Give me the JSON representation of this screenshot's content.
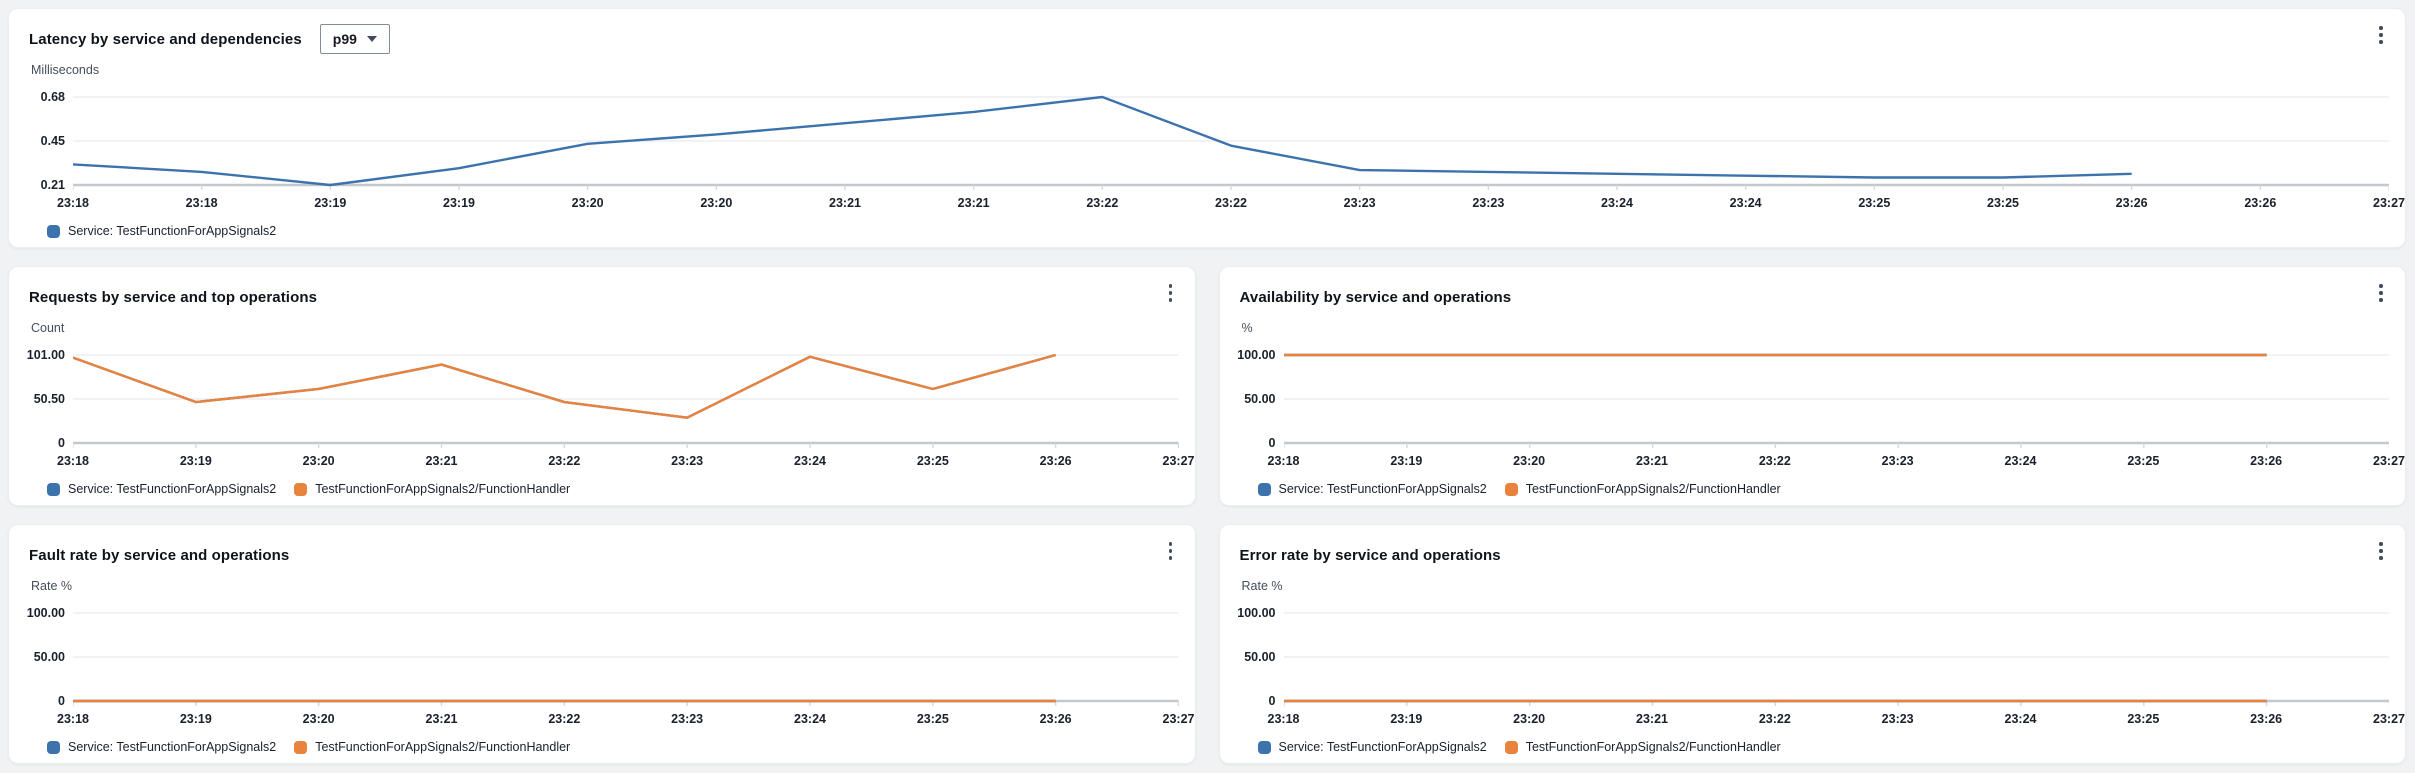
{
  "colors": {
    "blue": "#3C73AD",
    "orange": "#E8823D",
    "grid": "#ebedef",
    "axis": "#c2c8cd",
    "tickmark": "#d4d9dd"
  },
  "chart_data": [
    {
      "id": "latency",
      "type": "line",
      "title": "Latency by service and dependencies",
      "dropdown": {
        "value": "p99"
      },
      "ylabel": "Milliseconds",
      "ylim": [
        0.21,
        0.68
      ],
      "grid": true,
      "legend_position": "bottom",
      "y_ticks": [
        {
          "label": "0.68",
          "value": 0.68
        },
        {
          "label": "0.45",
          "value": 0.45
        },
        {
          "label": "0.21",
          "value": 0.21
        }
      ],
      "x_ticks": [
        "23:18",
        "23:18",
        "23:19",
        "23:19",
        "23:20",
        "23:20",
        "23:21",
        "23:21",
        "23:22",
        "23:22",
        "23:23",
        "23:23",
        "23:24",
        "23:24",
        "23:25",
        "23:25",
        "23:26",
        "23:26",
        "23:27"
      ],
      "series": [
        {
          "name": "Service: TestFunctionForAppSignals2",
          "color": "blue",
          "values": [
            0.32,
            0.28,
            0.21,
            0.3,
            0.43,
            0.48,
            0.54,
            0.6,
            0.68,
            0.42,
            0.29,
            0.28,
            0.27,
            0.26,
            0.25,
            0.25,
            0.27
          ]
        }
      ],
      "legend": [
        {
          "label": "Service: TestFunctionForAppSignals2",
          "color": "blue"
        }
      ]
    },
    {
      "id": "requests",
      "type": "line",
      "title": "Requests by service and top operations",
      "ylabel": "Count",
      "ylim": [
        0,
        101
      ],
      "grid": true,
      "legend_position": "bottom",
      "y_ticks": [
        {
          "label": "101.00",
          "value": 101
        },
        {
          "label": "50.50",
          "value": 50.5
        },
        {
          "label": "0",
          "value": 0
        }
      ],
      "x_ticks": [
        "23:18",
        "23:19",
        "23:20",
        "23:21",
        "23:22",
        "23:23",
        "23:24",
        "23:25",
        "23:26",
        "23:27"
      ],
      "series": [
        {
          "name": "Service: TestFunctionForAppSignals2",
          "color": "blue",
          "values": [
            98,
            47,
            62,
            90,
            47,
            29,
            99,
            62,
            101
          ]
        },
        {
          "name": "TestFunctionForAppSignals2/FunctionHandler",
          "color": "orange",
          "values": [
            98,
            47,
            62,
            90,
            47,
            29,
            99,
            62,
            101
          ]
        }
      ],
      "legend": [
        {
          "label": "Service: TestFunctionForAppSignals2",
          "color": "blue"
        },
        {
          "label": "TestFunctionForAppSignals2/FunctionHandler",
          "color": "orange"
        }
      ]
    },
    {
      "id": "availability",
      "type": "line",
      "title": "Availability by service and operations",
      "ylabel": "%",
      "ylim": [
        0,
        100
      ],
      "grid": true,
      "legend_position": "bottom",
      "y_ticks": [
        {
          "label": "100.00",
          "value": 100
        },
        {
          "label": "50.00",
          "value": 50
        },
        {
          "label": "0",
          "value": 0
        }
      ],
      "x_ticks": [
        "23:18",
        "23:19",
        "23:20",
        "23:21",
        "23:22",
        "23:23",
        "23:24",
        "23:25",
        "23:26",
        "23:27"
      ],
      "series": [
        {
          "name": "Service: TestFunctionForAppSignals2",
          "color": "blue",
          "values": [
            100,
            100,
            100,
            100,
            100,
            100,
            100,
            100,
            100
          ]
        },
        {
          "name": "TestFunctionForAppSignals2/FunctionHandler",
          "color": "orange",
          "values": [
            100,
            100,
            100,
            100,
            100,
            100,
            100,
            100,
            100
          ]
        }
      ],
      "legend": [
        {
          "label": "Service: TestFunctionForAppSignals2",
          "color": "blue"
        },
        {
          "label": "TestFunctionForAppSignals2/FunctionHandler",
          "color": "orange"
        }
      ]
    },
    {
      "id": "fault-rate",
      "type": "line",
      "title": "Fault rate by service and operations",
      "ylabel": "Rate %",
      "ylim": [
        0,
        100
      ],
      "grid": true,
      "legend_position": "bottom",
      "y_ticks": [
        {
          "label": "100.00",
          "value": 100
        },
        {
          "label": "50.00",
          "value": 50
        },
        {
          "label": "0",
          "value": 0
        }
      ],
      "x_ticks": [
        "23:18",
        "23:19",
        "23:20",
        "23:21",
        "23:22",
        "23:23",
        "23:24",
        "23:25",
        "23:26",
        "23:27"
      ],
      "series": [
        {
          "name": "Service: TestFunctionForAppSignals2",
          "color": "blue",
          "values": [
            0,
            0,
            0,
            0,
            0,
            0,
            0,
            0,
            0
          ]
        },
        {
          "name": "TestFunctionForAppSignals2/FunctionHandler",
          "color": "orange",
          "values": [
            0,
            0,
            0,
            0,
            0,
            0,
            0,
            0,
            0
          ]
        }
      ],
      "legend": [
        {
          "label": "Service: TestFunctionForAppSignals2",
          "color": "blue"
        },
        {
          "label": "TestFunctionForAppSignals2/FunctionHandler",
          "color": "orange"
        }
      ]
    },
    {
      "id": "error-rate",
      "type": "line",
      "title": "Error rate by service and operations",
      "ylabel": "Rate %",
      "ylim": [
        0,
        100
      ],
      "grid": true,
      "legend_position": "bottom",
      "y_ticks": [
        {
          "label": "100.00",
          "value": 100
        },
        {
          "label": "50.00",
          "value": 50
        },
        {
          "label": "0",
          "value": 0
        }
      ],
      "x_ticks": [
        "23:18",
        "23:19",
        "23:20",
        "23:21",
        "23:22",
        "23:23",
        "23:24",
        "23:25",
        "23:26",
        "23:27"
      ],
      "series": [
        {
          "name": "Service: TestFunctionForAppSignals2",
          "color": "blue",
          "values": [
            0,
            0,
            0,
            0,
            0,
            0,
            0,
            0,
            0
          ]
        },
        {
          "name": "TestFunctionForAppSignals2/FunctionHandler",
          "color": "orange",
          "values": [
            0,
            0,
            0,
            0,
            0,
            0,
            0,
            0,
            0
          ]
        }
      ],
      "legend": [
        {
          "label": "Service: TestFunctionForAppSignals2",
          "color": "blue"
        },
        {
          "label": "TestFunctionForAppSignals2/FunctionHandler",
          "color": "orange"
        }
      ]
    }
  ]
}
